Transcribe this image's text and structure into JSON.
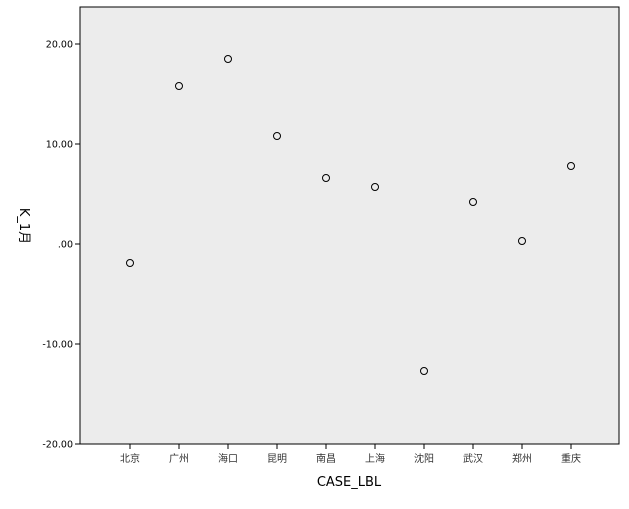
{
  "chart_data": {
    "type": "scatter",
    "title": "",
    "xlabel": "CASE_LBL",
    "ylabel": "K_1月",
    "categories": [
      "北京",
      "广州",
      "海口",
      "昆明",
      "南昌",
      "上海",
      "沈阳",
      "武汉",
      "郑州",
      "重庆"
    ],
    "y_ticks": [
      "20.00",
      "10.00",
      ".00",
      "-10.00",
      "-20.00"
    ],
    "y_tick_values": [
      20,
      10,
      0,
      -10,
      -20
    ],
    "ylim": [
      -20,
      23.7
    ],
    "grid": false,
    "legend": "none",
    "series": [
      {
        "values": [
          -1.9,
          15.8,
          18.5,
          10.8,
          6.6,
          5.7,
          -12.7,
          4.2,
          0.3,
          7.8
        ]
      }
    ],
    "colors": {
      "plot_background": "#ececec",
      "marker_stroke": "#000000",
      "axis": "#000000"
    }
  }
}
